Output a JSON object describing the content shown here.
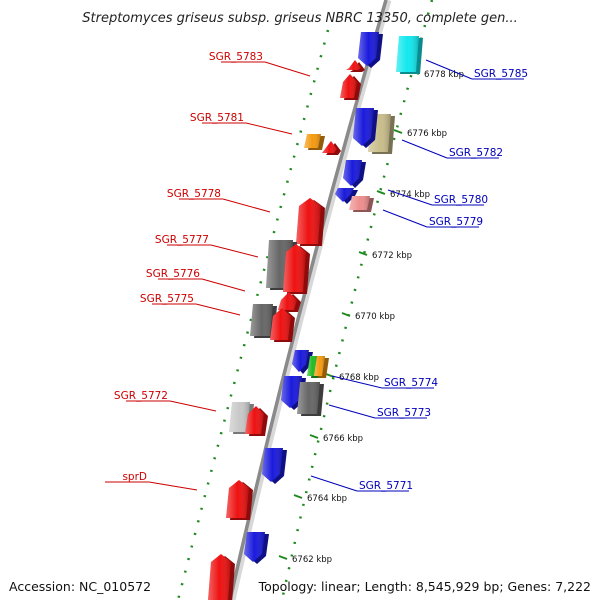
{
  "title": "Streptomyces griseus subsp. griseus NBRC 13350, complete gen...",
  "footer": {
    "accession": "Accession: NC_010572",
    "topology": "Topology: linear; Length: 8,545,929 bp; Genes: 7,222"
  },
  "colors": {
    "backbone": "#8a8a8a",
    "dotted_track": "#1e8a1e",
    "forward_label": "#cc0000",
    "reverse_label": "#0000bb",
    "red": "#ee1111",
    "blue": "#1a1add",
    "cyan": "#11e8ee",
    "tan": "#c8bd8a",
    "orange": "#f59a10",
    "pink": "#ee8e8e",
    "dark_grey": "#666666",
    "light_grey": "#c8c8c8",
    "green": "#22bb22"
  },
  "ticks": [
    "6778 kbp",
    "6776 kbp",
    "6774 kbp",
    "6772 kbp",
    "6770 kbp",
    "6768 kbp",
    "6766 kbp",
    "6764 kbp",
    "6762 kbp"
  ],
  "forward_labels": [
    "SGR_5783",
    "SGR_5781",
    "SGR_5778",
    "SGR_5777",
    "SGR_5776",
    "SGR_5775",
    "SGR_5772",
    "sprD"
  ],
  "reverse_labels": [
    "SGR_5785",
    "SGR_5782",
    "SGR_5780",
    "SGR_5779",
    "SGR_5774",
    "SGR_5773",
    "SGR_5771"
  ],
  "features": [
    {
      "strand": "reverse",
      "color": "cyan",
      "arrow": false
    },
    {
      "strand": "reverse",
      "color": "blue",
      "arrow": true
    },
    {
      "strand": "forward",
      "color": "red",
      "arrow": true
    },
    {
      "strand": "forward",
      "color": "red",
      "arrow": true
    },
    {
      "strand": "reverse",
      "color": "tan",
      "arrow": false
    },
    {
      "strand": "reverse",
      "color": "blue",
      "arrow": true
    },
    {
      "strand": "forward",
      "color": "orange",
      "arrow": false
    },
    {
      "strand": "forward",
      "color": "red",
      "arrow": true
    },
    {
      "strand": "reverse",
      "color": "blue",
      "arrow": true
    },
    {
      "strand": "reverse",
      "color": "blue",
      "arrow": true
    },
    {
      "strand": "reverse",
      "color": "pink",
      "arrow": false
    },
    {
      "strand": "forward",
      "color": "red",
      "arrow": true
    },
    {
      "strand": "forward",
      "color": "dark_grey",
      "arrow": false
    },
    {
      "strand": "forward",
      "color": "red",
      "arrow": true
    },
    {
      "strand": "forward",
      "color": "red",
      "arrow": true
    },
    {
      "strand": "forward",
      "color": "dark_grey",
      "arrow": false
    },
    {
      "strand": "forward",
      "color": "red",
      "arrow": true
    },
    {
      "strand": "reverse",
      "color": "blue",
      "arrow": true
    },
    {
      "strand": "reverse",
      "color": "green",
      "arrow": false
    },
    {
      "strand": "reverse",
      "color": "orange",
      "arrow": false
    },
    {
      "strand": "reverse",
      "color": "blue",
      "arrow": true
    },
    {
      "strand": "reverse",
      "color": "dark_grey",
      "arrow": false
    },
    {
      "strand": "forward",
      "color": "light_grey",
      "arrow": false
    },
    {
      "strand": "forward",
      "color": "red",
      "arrow": true
    },
    {
      "strand": "reverse",
      "color": "blue",
      "arrow": true
    },
    {
      "strand": "forward",
      "color": "red",
      "arrow": true
    },
    {
      "strand": "reverse",
      "color": "blue",
      "arrow": true
    },
    {
      "strand": "forward",
      "color": "red",
      "arrow": true
    }
  ]
}
